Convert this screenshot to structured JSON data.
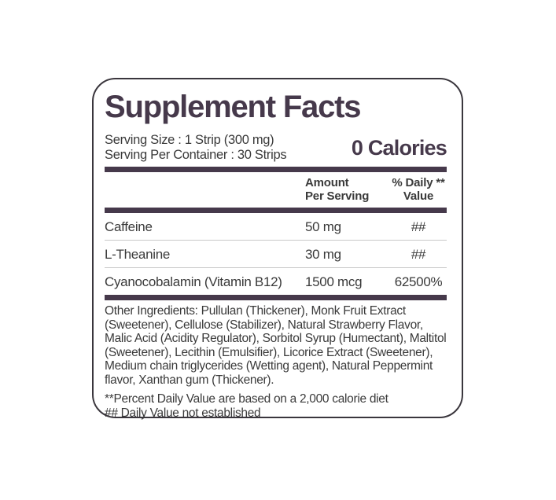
{
  "label": {
    "title": "Supplement Facts",
    "serving_size": "Serving Size : 1 Strip (300 mg)",
    "serving_per_container": "Serving Per Container : 30 Strips",
    "calories": "0 Calories",
    "table": {
      "header_amount": "Amount\nPer Serving",
      "header_daily_value": "% Daily **\nValue",
      "rows": [
        {
          "name": "Caffeine",
          "amount": "50 mg",
          "daily_value": "##"
        },
        {
          "name": "L-Theanine",
          "amount": "30 mg",
          "daily_value": "##"
        },
        {
          "name": "Cyanocobalamin (Vitamin B12)",
          "amount": "1500 mcg",
          "daily_value": "62500%"
        }
      ]
    },
    "other_ingredients": "Other Ingredients: Pullulan (Thickener), Monk Fruit Extract (Sweetener), Cellulose (Stabilizer), Natural Strawberry Flavor, Malic Acid (Acidity Regulator), Sorbitol Syrup (Humectant), Maltitol (Sweetener), Lecithin (Emulsifier), Licorice Extract (Sweetener), Medium chain triglycerides (Wetting agent), Natural Peppermint flavor, Xanthan gum (Thickener).",
    "footnote_percent": "**Percent Daily Value are based on a 2,000 calorie diet",
    "footnote_hash": "## Daily Value not established"
  },
  "colors": {
    "accent_purple": "#46394b",
    "body_text": "#3a3a3a",
    "border": "#3a363d",
    "divider": "#c9c9c9",
    "background": "#ffffff"
  }
}
